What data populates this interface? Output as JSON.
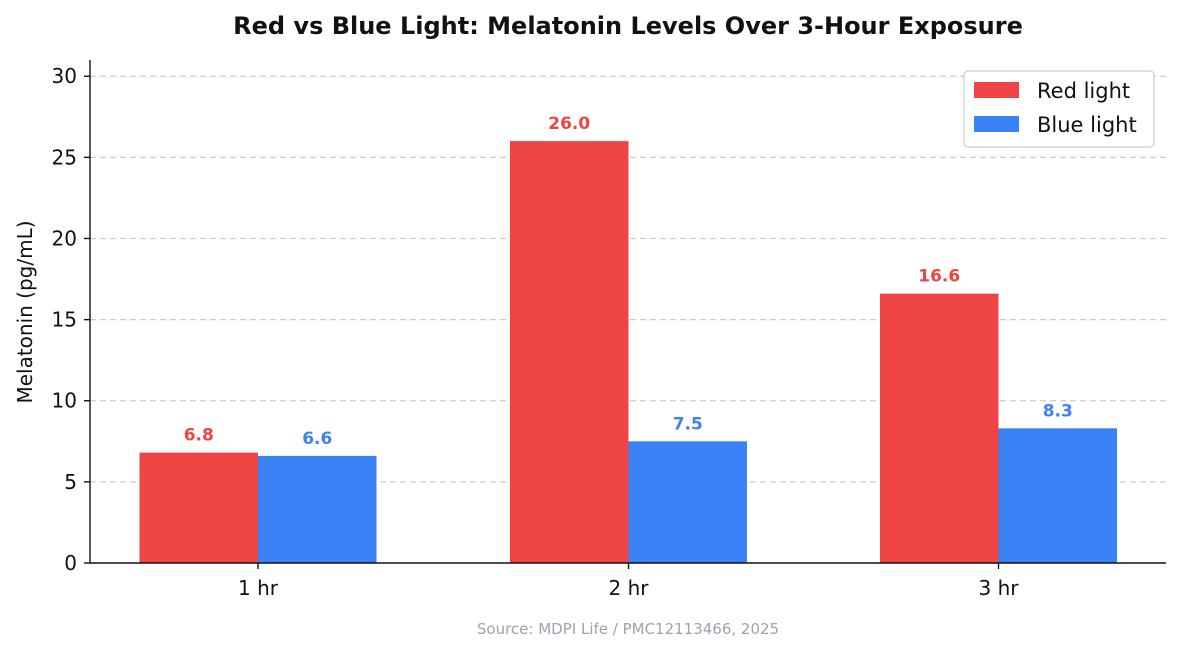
{
  "chart_data": {
    "type": "bar",
    "title": "Red vs Blue Light: Melatonin Levels Over 3-Hour Exposure",
    "xlabel": "",
    "ylabel": "Melatonin (pg/mL)",
    "categories": [
      "1 hr",
      "2 hr",
      "3 hr"
    ],
    "series": [
      {
        "name": "Red light",
        "color": "#ef4444",
        "values": [
          6.8,
          26.0,
          16.6
        ],
        "labels": [
          "6.8",
          "26.0",
          "16.6"
        ]
      },
      {
        "name": "Blue light",
        "color": "#3b82f6",
        "values": [
          6.6,
          7.5,
          8.3
        ],
        "labels": [
          "6.6",
          "7.5",
          "8.3"
        ]
      }
    ],
    "ylim": [
      0,
      31
    ],
    "yticks": [
      0,
      5,
      10,
      15,
      20,
      25,
      30
    ],
    "ytick_labels": [
      "0",
      "5",
      "10",
      "15",
      "20",
      "25",
      "30"
    ],
    "grid": "y-dashed",
    "legend_position": "top-right"
  },
  "source_note": "Source: MDPI Life / PMC12113466, 2025"
}
